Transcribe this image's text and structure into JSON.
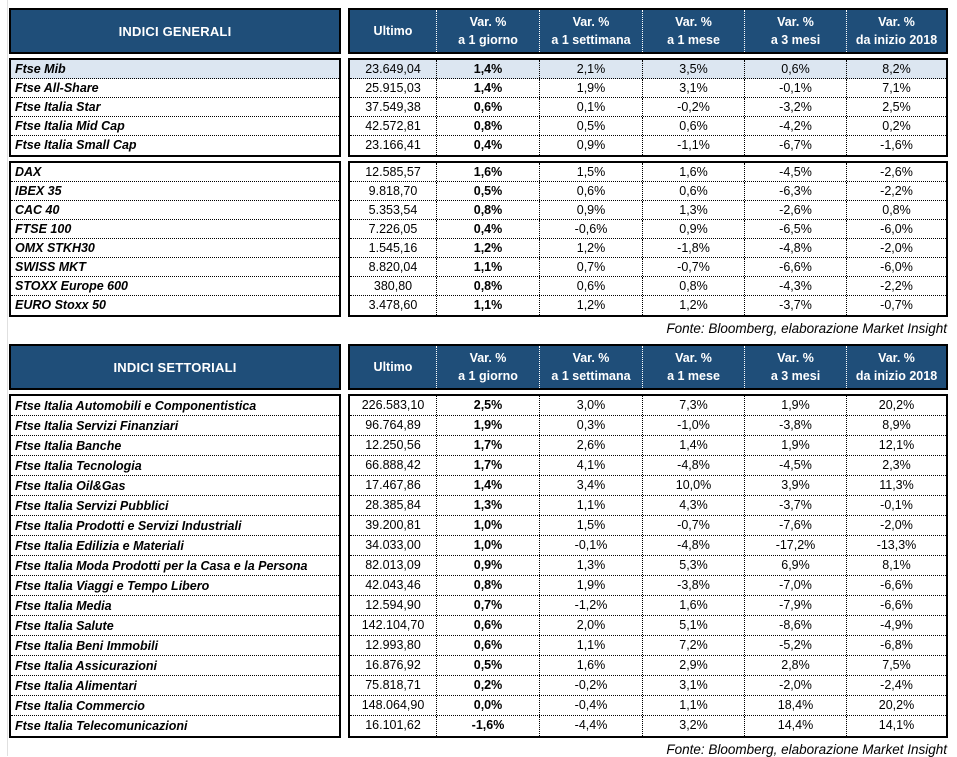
{
  "colors": {
    "header_bg": "#1F4E79",
    "highlight_row": "#DCE6F1",
    "border": "#000000"
  },
  "tables": [
    {
      "title": "INDICI GENERALI",
      "source": "Fonte: Bloomberg, elaborazione Market Insight",
      "col_headers": [
        {
          "l1": "Ultimo",
          "l2": ""
        },
        {
          "l1": "Var. %",
          "l2": "a 1 giorno"
        },
        {
          "l1": "Var. %",
          "l2": "a 1 settimana"
        },
        {
          "l1": "Var. %",
          "l2": "a 1 mese"
        },
        {
          "l1": "Var. %",
          "l2": "a 3 mesi"
        },
        {
          "l1": "Var. %",
          "l2": "da inizio 2018"
        }
      ],
      "blocks": [
        {
          "rows": [
            {
              "name": "Ftse Mib",
              "highlight": true,
              "values": [
                "23.649,04",
                "1,4%",
                "2,1%",
                "3,5%",
                "0,6%",
                "8,2%"
              ]
            },
            {
              "name": "Ftse All-Share",
              "highlight": false,
              "values": [
                "25.915,03",
                "1,4%",
                "1,9%",
                "3,1%",
                "-0,1%",
                "7,1%"
              ]
            },
            {
              "name": "Ftse Italia Star",
              "highlight": false,
              "values": [
                "37.549,38",
                "0,6%",
                "0,1%",
                "-0,2%",
                "-3,2%",
                "2,5%"
              ]
            },
            {
              "name": "Ftse Italia Mid Cap",
              "highlight": false,
              "values": [
                "42.572,81",
                "0,8%",
                "0,5%",
                "0,6%",
                "-4,2%",
                "0,2%"
              ]
            },
            {
              "name": "Ftse Italia Small Cap",
              "highlight": false,
              "values": [
                "23.166,41",
                "0,4%",
                "0,9%",
                "-1,1%",
                "-6,7%",
                "-1,6%"
              ]
            }
          ]
        },
        {
          "rows": [
            {
              "name": "DAX",
              "highlight": false,
              "values": [
                "12.585,57",
                "1,6%",
                "1,5%",
                "1,6%",
                "-4,5%",
                "-2,6%"
              ]
            },
            {
              "name": "IBEX 35",
              "highlight": false,
              "values": [
                "9.818,70",
                "0,5%",
                "0,6%",
                "0,6%",
                "-6,3%",
                "-2,2%"
              ]
            },
            {
              "name": "CAC 40",
              "highlight": false,
              "values": [
                "5.353,54",
                "0,8%",
                "0,9%",
                "1,3%",
                "-2,6%",
                "0,8%"
              ]
            },
            {
              "name": "FTSE 100",
              "highlight": false,
              "values": [
                "7.226,05",
                "0,4%",
                "-0,6%",
                "0,9%",
                "-6,5%",
                "-6,0%"
              ]
            },
            {
              "name": "OMX STKH30",
              "highlight": false,
              "values": [
                "1.545,16",
                "1,2%",
                "1,2%",
                "-1,8%",
                "-4,8%",
                "-2,0%"
              ]
            },
            {
              "name": "SWISS MKT",
              "highlight": false,
              "values": [
                "8.820,04",
                "1,1%",
                "0,7%",
                "-0,7%",
                "-6,6%",
                "-6,0%"
              ]
            },
            {
              "name": "STOXX Europe 600",
              "highlight": false,
              "values": [
                "380,80",
                "0,8%",
                "0,6%",
                "0,8%",
                "-4,3%",
                "-2,2%"
              ]
            },
            {
              "name": "EURO Stoxx 50",
              "highlight": false,
              "values": [
                "3.478,60",
                "1,1%",
                "1,2%",
                "1,2%",
                "-3,7%",
                "-0,7%"
              ]
            }
          ]
        }
      ]
    },
    {
      "title": "INDICI SETTORIALI",
      "source": "Fonte: Bloomberg, elaborazione Market Insight",
      "col_headers": [
        {
          "l1": "Ultimo",
          "l2": ""
        },
        {
          "l1": "Var. %",
          "l2": "a 1 giorno"
        },
        {
          "l1": "Var. %",
          "l2": "a 1 settimana"
        },
        {
          "l1": "Var. %",
          "l2": "a 1 mese"
        },
        {
          "l1": "Var. %",
          "l2": "a 3 mesi"
        },
        {
          "l1": "Var. %",
          "l2": "da inizio 2018"
        }
      ],
      "blocks": [
        {
          "rows": [
            {
              "name": "Ftse Italia Automobili e Componentistica",
              "highlight": false,
              "values": [
                "226.583,10",
                "2,5%",
                "3,0%",
                "7,3%",
                "1,9%",
                "20,2%"
              ]
            },
            {
              "name": "Ftse Italia Servizi Finanziari",
              "highlight": false,
              "values": [
                "96.764,89",
                "1,9%",
                "0,3%",
                "-1,0%",
                "-3,8%",
                "8,9%"
              ]
            },
            {
              "name": "Ftse Italia Banche",
              "highlight": false,
              "values": [
                "12.250,56",
                "1,7%",
                "2,6%",
                "1,4%",
                "1,9%",
                "12,1%"
              ]
            },
            {
              "name": "Ftse Italia Tecnologia",
              "highlight": false,
              "values": [
                "66.888,42",
                "1,7%",
                "4,1%",
                "-4,8%",
                "-4,5%",
                "2,3%"
              ]
            },
            {
              "name": "Ftse Italia Oil&Gas",
              "highlight": false,
              "values": [
                "17.467,86",
                "1,4%",
                "3,4%",
                "10,0%",
                "3,9%",
                "11,3%"
              ]
            },
            {
              "name": "Ftse Italia Servizi Pubblici",
              "highlight": false,
              "values": [
                "28.385,84",
                "1,3%",
                "1,1%",
                "4,3%",
                "-3,7%",
                "-0,1%"
              ]
            },
            {
              "name": "Ftse Italia Prodotti e Servizi Industriali",
              "highlight": false,
              "values": [
                "39.200,81",
                "1,0%",
                "1,5%",
                "-0,7%",
                "-7,6%",
                "-2,0%"
              ]
            },
            {
              "name": "Ftse Italia Edilizia e Materiali",
              "highlight": false,
              "values": [
                "34.033,00",
                "1,0%",
                "-0,1%",
                "-4,8%",
                "-17,2%",
                "-13,3%"
              ]
            },
            {
              "name": "Ftse Italia Moda Prodotti per la Casa e la Persona",
              "highlight": false,
              "values": [
                "82.013,09",
                "0,9%",
                "1,3%",
                "5,3%",
                "6,9%",
                "8,1%"
              ]
            },
            {
              "name": "Ftse Italia Viaggi e Tempo Libero",
              "highlight": false,
              "values": [
                "42.043,46",
                "0,8%",
                "1,9%",
                "-3,8%",
                "-7,0%",
                "-6,6%"
              ]
            },
            {
              "name": "Ftse Italia Media",
              "highlight": false,
              "values": [
                "12.594,90",
                "0,7%",
                "-1,2%",
                "1,6%",
                "-7,9%",
                "-6,6%"
              ]
            },
            {
              "name": "Ftse Italia Salute",
              "highlight": false,
              "values": [
                "142.104,70",
                "0,6%",
                "2,0%",
                "5,1%",
                "-8,6%",
                "-4,9%"
              ]
            },
            {
              "name": "Ftse Italia Beni Immobili",
              "highlight": false,
              "values": [
                "12.993,80",
                "0,6%",
                "1,1%",
                "7,2%",
                "-5,2%",
                "-6,8%"
              ]
            },
            {
              "name": "Ftse Italia Assicurazioni",
              "highlight": false,
              "values": [
                "16.876,92",
                "0,5%",
                "1,6%",
                "2,9%",
                "2,8%",
                "7,5%"
              ]
            },
            {
              "name": "Ftse Italia Alimentari",
              "highlight": false,
              "values": [
                "75.818,71",
                "0,2%",
                "-0,2%",
                "3,1%",
                "-2,0%",
                "-2,4%"
              ]
            },
            {
              "name": "Ftse Italia Commercio",
              "highlight": false,
              "values": [
                "148.064,90",
                "0,0%",
                "-0,4%",
                "1,1%",
                "18,4%",
                "20,2%"
              ]
            },
            {
              "name": "Ftse Italia Telecomunicazioni",
              "highlight": false,
              "values": [
                "16.101,62",
                "-1,6%",
                "-4,4%",
                "3,2%",
                "14,4%",
                "14,1%"
              ]
            }
          ]
        }
      ]
    }
  ]
}
